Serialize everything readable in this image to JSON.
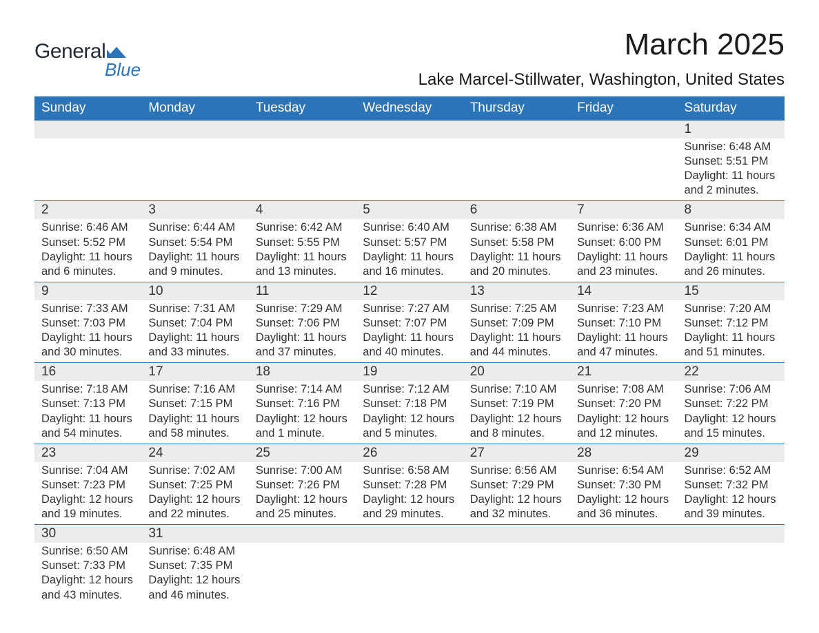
{
  "brand": {
    "general": "General",
    "blue": "Blue",
    "shape_color": "#2b74b8",
    "text_color": "#232a33"
  },
  "title": "March 2025",
  "location": "Lake Marcel-Stillwater, Washington, United States",
  "header_bg": "#2b74b8",
  "header_fg": "#ffffff",
  "daynum_bg": "#ececec",
  "border_color": "#2b74b8",
  "text_color": "#333333",
  "day_headers": [
    "Sunday",
    "Monday",
    "Tuesday",
    "Wednesday",
    "Thursday",
    "Friday",
    "Saturday"
  ],
  "weeks": [
    [
      null,
      null,
      null,
      null,
      null,
      null,
      {
        "n": "1",
        "sr": "Sunrise: 6:48 AM",
        "ss": "Sunset: 5:51 PM",
        "dl": "Daylight: 11 hours and 2 minutes."
      }
    ],
    [
      {
        "n": "2",
        "sr": "Sunrise: 6:46 AM",
        "ss": "Sunset: 5:52 PM",
        "dl": "Daylight: 11 hours and 6 minutes."
      },
      {
        "n": "3",
        "sr": "Sunrise: 6:44 AM",
        "ss": "Sunset: 5:54 PM",
        "dl": "Daylight: 11 hours and 9 minutes."
      },
      {
        "n": "4",
        "sr": "Sunrise: 6:42 AM",
        "ss": "Sunset: 5:55 PM",
        "dl": "Daylight: 11 hours and 13 minutes."
      },
      {
        "n": "5",
        "sr": "Sunrise: 6:40 AM",
        "ss": "Sunset: 5:57 PM",
        "dl": "Daylight: 11 hours and 16 minutes."
      },
      {
        "n": "6",
        "sr": "Sunrise: 6:38 AM",
        "ss": "Sunset: 5:58 PM",
        "dl": "Daylight: 11 hours and 20 minutes."
      },
      {
        "n": "7",
        "sr": "Sunrise: 6:36 AM",
        "ss": "Sunset: 6:00 PM",
        "dl": "Daylight: 11 hours and 23 minutes."
      },
      {
        "n": "8",
        "sr": "Sunrise: 6:34 AM",
        "ss": "Sunset: 6:01 PM",
        "dl": "Daylight: 11 hours and 26 minutes."
      }
    ],
    [
      {
        "n": "9",
        "sr": "Sunrise: 7:33 AM",
        "ss": "Sunset: 7:03 PM",
        "dl": "Daylight: 11 hours and 30 minutes."
      },
      {
        "n": "10",
        "sr": "Sunrise: 7:31 AM",
        "ss": "Sunset: 7:04 PM",
        "dl": "Daylight: 11 hours and 33 minutes."
      },
      {
        "n": "11",
        "sr": "Sunrise: 7:29 AM",
        "ss": "Sunset: 7:06 PM",
        "dl": "Daylight: 11 hours and 37 minutes."
      },
      {
        "n": "12",
        "sr": "Sunrise: 7:27 AM",
        "ss": "Sunset: 7:07 PM",
        "dl": "Daylight: 11 hours and 40 minutes."
      },
      {
        "n": "13",
        "sr": "Sunrise: 7:25 AM",
        "ss": "Sunset: 7:09 PM",
        "dl": "Daylight: 11 hours and 44 minutes."
      },
      {
        "n": "14",
        "sr": "Sunrise: 7:23 AM",
        "ss": "Sunset: 7:10 PM",
        "dl": "Daylight: 11 hours and 47 minutes."
      },
      {
        "n": "15",
        "sr": "Sunrise: 7:20 AM",
        "ss": "Sunset: 7:12 PM",
        "dl": "Daylight: 11 hours and 51 minutes."
      }
    ],
    [
      {
        "n": "16",
        "sr": "Sunrise: 7:18 AM",
        "ss": "Sunset: 7:13 PM",
        "dl": "Daylight: 11 hours and 54 minutes."
      },
      {
        "n": "17",
        "sr": "Sunrise: 7:16 AM",
        "ss": "Sunset: 7:15 PM",
        "dl": "Daylight: 11 hours and 58 minutes."
      },
      {
        "n": "18",
        "sr": "Sunrise: 7:14 AM",
        "ss": "Sunset: 7:16 PM",
        "dl": "Daylight: 12 hours and 1 minute."
      },
      {
        "n": "19",
        "sr": "Sunrise: 7:12 AM",
        "ss": "Sunset: 7:18 PM",
        "dl": "Daylight: 12 hours and 5 minutes."
      },
      {
        "n": "20",
        "sr": "Sunrise: 7:10 AM",
        "ss": "Sunset: 7:19 PM",
        "dl": "Daylight: 12 hours and 8 minutes."
      },
      {
        "n": "21",
        "sr": "Sunrise: 7:08 AM",
        "ss": "Sunset: 7:20 PM",
        "dl": "Daylight: 12 hours and 12 minutes."
      },
      {
        "n": "22",
        "sr": "Sunrise: 7:06 AM",
        "ss": "Sunset: 7:22 PM",
        "dl": "Daylight: 12 hours and 15 minutes."
      }
    ],
    [
      {
        "n": "23",
        "sr": "Sunrise: 7:04 AM",
        "ss": "Sunset: 7:23 PM",
        "dl": "Daylight: 12 hours and 19 minutes."
      },
      {
        "n": "24",
        "sr": "Sunrise: 7:02 AM",
        "ss": "Sunset: 7:25 PM",
        "dl": "Daylight: 12 hours and 22 minutes."
      },
      {
        "n": "25",
        "sr": "Sunrise: 7:00 AM",
        "ss": "Sunset: 7:26 PM",
        "dl": "Daylight: 12 hours and 25 minutes."
      },
      {
        "n": "26",
        "sr": "Sunrise: 6:58 AM",
        "ss": "Sunset: 7:28 PM",
        "dl": "Daylight: 12 hours and 29 minutes."
      },
      {
        "n": "27",
        "sr": "Sunrise: 6:56 AM",
        "ss": "Sunset: 7:29 PM",
        "dl": "Daylight: 12 hours and 32 minutes."
      },
      {
        "n": "28",
        "sr": "Sunrise: 6:54 AM",
        "ss": "Sunset: 7:30 PM",
        "dl": "Daylight: 12 hours and 36 minutes."
      },
      {
        "n": "29",
        "sr": "Sunrise: 6:52 AM",
        "ss": "Sunset: 7:32 PM",
        "dl": "Daylight: 12 hours and 39 minutes."
      }
    ],
    [
      {
        "n": "30",
        "sr": "Sunrise: 6:50 AM",
        "ss": "Sunset: 7:33 PM",
        "dl": "Daylight: 12 hours and 43 minutes."
      },
      {
        "n": "31",
        "sr": "Sunrise: 6:48 AM",
        "ss": "Sunset: 7:35 PM",
        "dl": "Daylight: 12 hours and 46 minutes."
      },
      null,
      null,
      null,
      null,
      null
    ]
  ]
}
